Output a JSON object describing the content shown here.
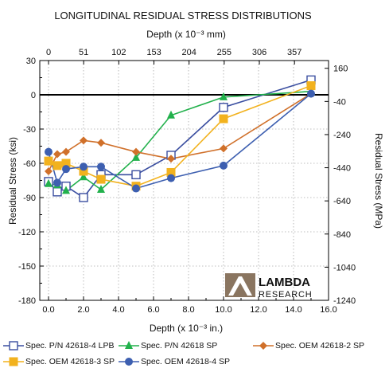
{
  "chart_data": {
    "type": "line",
    "title": "LONGITUDINAL RESIDUAL STRESS DISTRIBUTIONS",
    "xlabel": "Depth (x 10⁻³ in.)",
    "x2label": "Depth (x 10⁻³ mm)",
    "ylabel": "Residual Stress (ksi)",
    "y2label": "Residual Stress (MPa)",
    "xlim": [
      -0.5,
      16
    ],
    "ylim": [
      -180,
      30
    ],
    "y2lim": [
      -1240,
      206.8
    ],
    "x_ticks": [
      "0.0",
      "2.0",
      "4.0",
      "6.0",
      "8.0",
      "10.0",
      "12.0",
      "14.0",
      "16.0"
    ],
    "x_tick_values": [
      0,
      2,
      4,
      6,
      8,
      10,
      12,
      14,
      16
    ],
    "x2_ticks": [
      "0",
      "51",
      "102",
      "153",
      "204",
      "255",
      "306",
      "357"
    ],
    "x2_tick_values": [
      0,
      51,
      102,
      153,
      204,
      255,
      306,
      357
    ],
    "y_ticks": [
      "30",
      "0",
      "-30",
      "-60",
      "-90",
      "-120",
      "-150",
      "-180"
    ],
    "y_tick_values": [
      30,
      0,
      -30,
      -60,
      -90,
      -120,
      -150,
      -180
    ],
    "y2_ticks": [
      "160",
      "-40",
      "-240",
      "-440",
      "-640",
      "-840",
      "-1040",
      "-1240"
    ],
    "y2_tick_values": [
      160,
      -40,
      -240,
      -440,
      -640,
      -840,
      -1040,
      -1240
    ],
    "grid": true,
    "legend_position": "bottom",
    "series": [
      {
        "name": "Spec. P/N 42618-4 LPB",
        "color": "#3a4ea0",
        "marker": "open-square",
        "x": [
          0,
          0.5,
          1,
          2,
          3,
          5,
          7,
          10,
          15
        ],
        "y": [
          -76,
          -85,
          -80,
          -90,
          -70,
          -70,
          -53,
          -11,
          13
        ]
      },
      {
        "name": "Spec. P/N 42618 SP",
        "color": "#22b14c",
        "marker": "filled-triangle",
        "x": [
          0,
          0.5,
          1,
          2,
          3,
          5,
          7,
          10,
          15
        ],
        "y": [
          -78,
          -79,
          -84,
          -72,
          -83,
          -55,
          -18,
          -2,
          3
        ]
      },
      {
        "name": "Spec. OEM 42618-2 SP",
        "color": "#d0702a",
        "marker": "filled-diamond",
        "x": [
          0,
          0.5,
          1,
          2,
          3,
          5,
          7,
          10,
          15
        ],
        "y": [
          -67,
          -52,
          -50,
          -40,
          -42,
          -50,
          -56,
          -47,
          1
        ]
      },
      {
        "name": "Spec. OEM 42618-3 SP",
        "color": "#f2b21e",
        "marker": "filled-square",
        "x": [
          0,
          0.5,
          1,
          2,
          3,
          5,
          7,
          10,
          15
        ],
        "y": [
          -58,
          -62,
          -60,
          -67,
          -74,
          -80,
          -68,
          -21,
          8
        ]
      },
      {
        "name": "Spec. OEM 42618-4 SP",
        "color": "#3d5fb0",
        "marker": "filled-circle",
        "x": [
          0,
          0.5,
          1,
          2,
          3,
          5,
          7,
          10,
          15
        ],
        "y": [
          -50,
          -77,
          -65,
          -63,
          -63,
          -82,
          -73,
          -62,
          1
        ]
      }
    ]
  },
  "logo": {
    "line1": "LAMBDA",
    "line2": "RESEARCH",
    "color": "#8a7560"
  }
}
